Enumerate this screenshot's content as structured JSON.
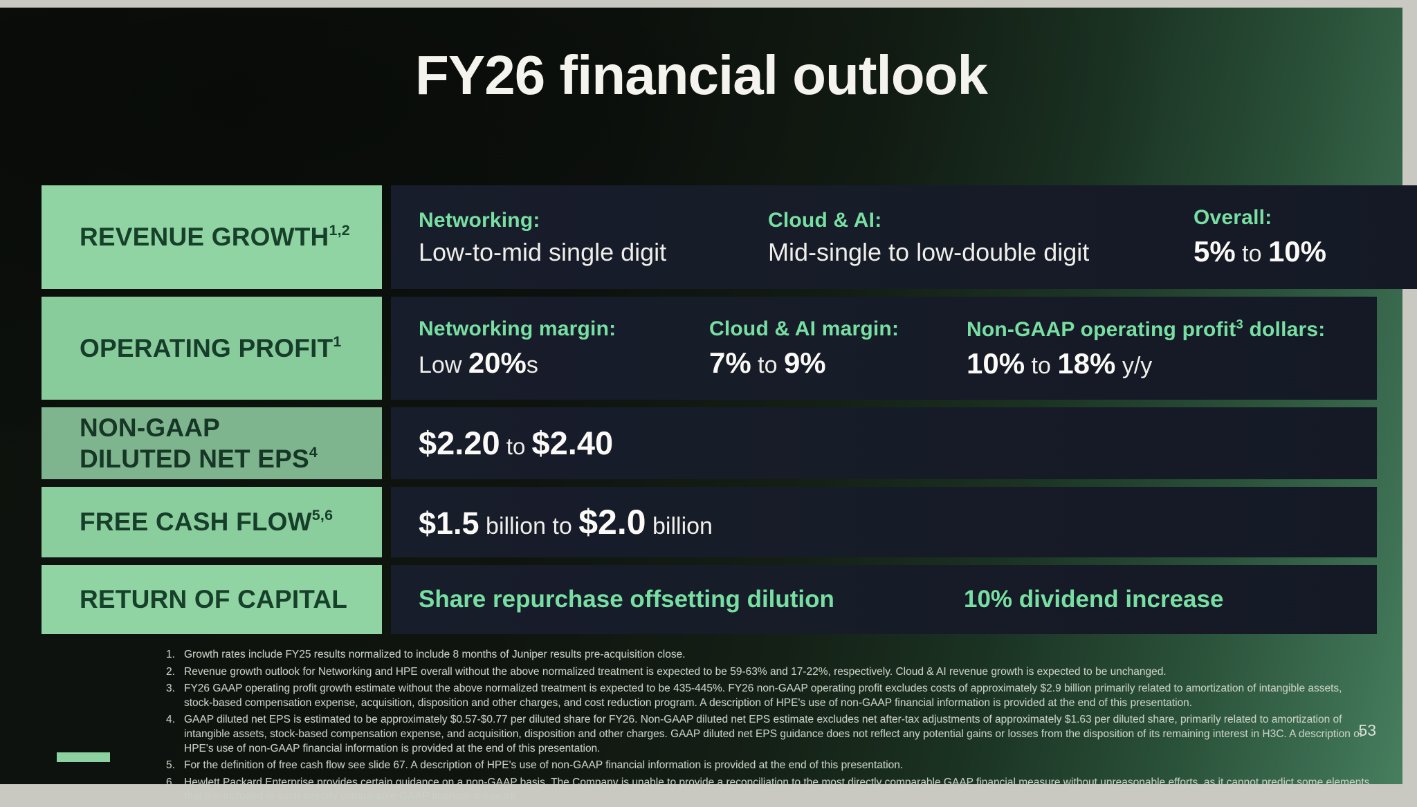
{
  "slide": {
    "title": "FY26 financial outlook",
    "page_number": "53"
  },
  "colors": {
    "label-bg": "#8fd4a2",
    "label-text": "#17402b",
    "content-bg": "#161b27",
    "accent-green": "#78dfa2",
    "value-white": "#efeee9"
  },
  "table": {
    "rows": [
      {
        "label": "REVENUE GROWTH",
        "label_sup": "1,2",
        "cols": [
          {
            "header": "Networking:",
            "value": "Low-to-mid single digit"
          },
          {
            "header": "Cloud & AI:",
            "value": "Mid-single to low-double digit"
          },
          {
            "header": "Overall:",
            "b1": "5%",
            "mid": " to ",
            "b2": "10%"
          }
        ]
      },
      {
        "label": "OPERATING PROFIT",
        "label_sup": "1",
        "cols": [
          {
            "header": "Networking margin:",
            "pre": "Low ",
            "b1": "20%",
            "suf": "s"
          },
          {
            "header": "Cloud & AI margin:",
            "b1": "7%",
            "mid": " to ",
            "b2": "9%"
          },
          {
            "header_pre": "Non-GAAP operating profit",
            "header_sup": "3",
            "header_suf": " dollars:",
            "b1": "10%",
            "mid": " to ",
            "b2": "18%",
            "suf": " y/y"
          }
        ]
      },
      {
        "label_line1": "NON-GAAP",
        "label_line2": "DILUTED NET EPS",
        "label_sup": "4",
        "b1": "$2.20",
        "mid": " to ",
        "b2": "$2.40"
      },
      {
        "label": "FREE CASH FLOW",
        "label_sup": "5,6",
        "b1": "$1.5",
        "mid": " billion to ",
        "b2": "$2.0",
        "suf": " billion"
      },
      {
        "label": "RETURN OF CAPITAL",
        "value1": "Share repurchase offsetting dilution",
        "value2": "10% dividend increase"
      }
    ]
  },
  "footnotes": [
    {
      "num": "1.",
      "text": "Growth rates include FY25 results normalized to include 8 months of Juniper results pre-acquisition close."
    },
    {
      "num": "2.",
      "text": "Revenue growth outlook for Networking and HPE overall without the above normalized treatment is expected to be 59-63% and 17-22%, respectively. Cloud & AI revenue growth is expected to be unchanged."
    },
    {
      "num": "3.",
      "text": "FY26 GAAP operating profit growth estimate without the above normalized treatment is expected to be 435-445%. FY26 non-GAAP operating profit excludes costs of approximately $2.9 billion primarily related to amortization of intangible assets, stock-based compensation expense, acquisition, disposition and other charges, and cost reduction program. A description of HPE's use of non-GAAP financial information is provided at the end of this presentation."
    },
    {
      "num": "4.",
      "text": "GAAP diluted net EPS is estimated to be approximately $0.57-$0.77 per diluted share for FY26. Non-GAAP diluted net EPS estimate excludes net after-tax adjustments of approximately $1.63 per diluted share, primarily related to amortization of intangible assets, stock-based compensation expense, and acquisition, disposition and other charges. GAAP diluted net EPS guidance does not reflect any potential gains or losses from the disposition of its remaining interest in H3C. A description of HPE's use of non-GAAP financial information is provided at the end of this presentation."
    },
    {
      "num": "5.",
      "text": "For the definition of free cash flow see slide 67. A description of HPE's use of non-GAAP financial information is provided at the end of this presentation."
    },
    {
      "num": "6.",
      "text": "Hewlett Packard Enterprise provides certain guidance on a non-GAAP basis. The Company is unable to provide a reconciliation to the most directly comparable GAAP financial measure without unreasonable efforts, as it cannot predict some elements that are included in such directly comparable GAAP financial measure."
    }
  ]
}
